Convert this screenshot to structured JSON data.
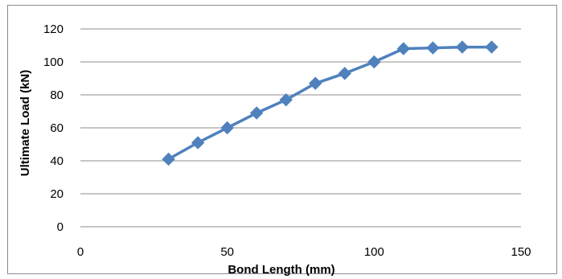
{
  "chart_data": {
    "type": "line",
    "title": "",
    "xlabel": "Bond Length (mm)",
    "ylabel": "Ultimate Load (kN)",
    "xlim": [
      0,
      150
    ],
    "ylim": [
      0,
      120
    ],
    "x_ticks": [
      0,
      50,
      100,
      150
    ],
    "y_ticks": [
      0,
      20,
      40,
      60,
      80,
      100,
      120
    ],
    "grid": "horizontal",
    "legend": "none",
    "series": [
      {
        "x": [
          30,
          40,
          50,
          60,
          70,
          80,
          90,
          100,
          110,
          120,
          130,
          140
        ],
        "y": [
          41,
          51,
          60,
          69,
          77,
          87,
          93,
          100,
          108,
          108.5,
          109,
          109
        ],
        "color": "#4f81bd",
        "marker": "diamond"
      }
    ]
  }
}
